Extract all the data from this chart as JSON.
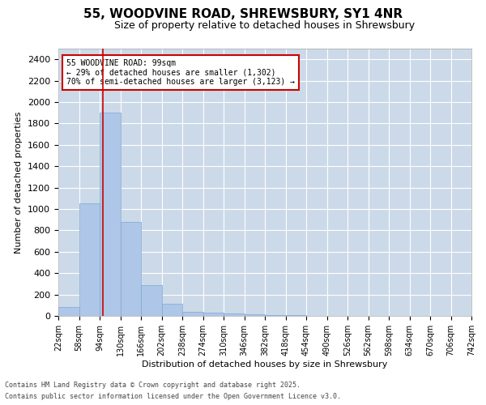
{
  "title1": "55, WOODVINE ROAD, SHREWSBURY, SY1 4NR",
  "title2": "Size of property relative to detached houses in Shrewsbury",
  "xlabel": "Distribution of detached houses by size in Shrewsbury",
  "ylabel": "Number of detached properties",
  "footer1": "Contains HM Land Registry data © Crown copyright and database right 2025.",
  "footer2": "Contains public sector information licensed under the Open Government Licence v3.0.",
  "annotation_line1": "55 WOODVINE ROAD: 99sqm",
  "annotation_line2": "← 29% of detached houses are smaller (1,302)",
  "annotation_line3": "70% of semi-detached houses are larger (3,123) →",
  "property_size": 99,
  "bin_edges": [
    22,
    58,
    94,
    130,
    166,
    202,
    238,
    274,
    310,
    346,
    382,
    418,
    454,
    490,
    526,
    562,
    598,
    634,
    670,
    706,
    742
  ],
  "bar_heights": [
    80,
    1050,
    1900,
    880,
    290,
    110,
    40,
    30,
    25,
    15,
    10,
    5,
    2,
    1,
    1,
    0,
    0,
    0,
    0,
    0
  ],
  "bar_color": "#aec6e8",
  "bar_edgecolor": "#7aaacf",
  "vline_color": "#cc0000",
  "vline_x": 99,
  "annotation_box_edgecolor": "#cc0000",
  "annotation_box_facecolor": "#ffffff",
  "background_color": "#ffffff",
  "grid_color": "#ccd9e8",
  "ylim": [
    0,
    2500
  ],
  "yticks": [
    0,
    200,
    400,
    600,
    800,
    1000,
    1200,
    1400,
    1600,
    1800,
    2000,
    2200,
    2400
  ],
  "tick_labels": [
    "22sqm",
    "58sqm",
    "94sqm",
    "130sqm",
    "166sqm",
    "202sqm",
    "238sqm",
    "274sqm",
    "310sqm",
    "346sqm",
    "382sqm",
    "418sqm",
    "454sqm",
    "490sqm",
    "526sqm",
    "562sqm",
    "598sqm",
    "634sqm",
    "670sqm",
    "706sqm",
    "742sqm"
  ],
  "title1_fontsize": 11,
  "title2_fontsize": 9,
  "ylabel_fontsize": 8,
  "xlabel_fontsize": 8,
  "ytick_fontsize": 8,
  "xtick_fontsize": 7,
  "annotation_fontsize": 7,
  "footer_fontsize": 6
}
